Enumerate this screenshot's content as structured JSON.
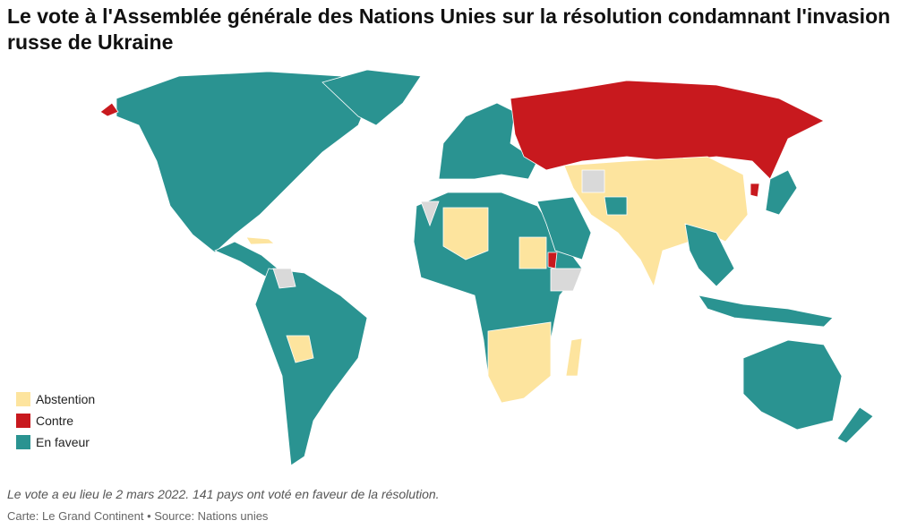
{
  "title": "Le vote à l'Assemblée générale des Nations Unies sur la résolution condamnant l'invasion russe de Ukraine",
  "legend": [
    {
      "name": "Abstention",
      "color": "#fde49e"
    },
    {
      "name": "Contre",
      "color": "#c8191e"
    },
    {
      "name": "En faveur",
      "color": "#2a9391"
    }
  ],
  "note": "Le vote a eu lieu le 2 mars 2022. 141 pays ont voté en faveur de la résolution.",
  "source": "Carte: Le Grand Continent • Source: Nations unies"
}
